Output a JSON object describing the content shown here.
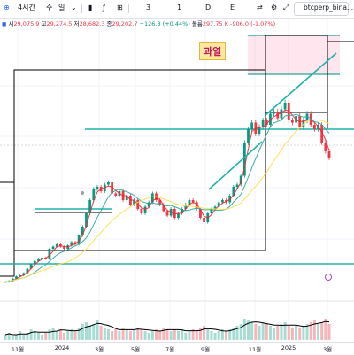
{
  "toolbar": {
    "items": [
      "4시간",
      "주",
      "일",
      "3",
      "1",
      "D",
      "E"
    ],
    "symbol": "btcperp_bina..."
  },
  "ohlc": {
    "open_label": "시",
    "open": "29,075.9",
    "high_label": "고",
    "high": "29,274.5",
    "low_label": "저",
    "low": "28,682.3",
    "close_label": "종",
    "close": "29,202.7",
    "change": "+126.8 (+0.44%)",
    "volume_label": "볼륨",
    "volume": "297.75 K",
    "vol_change": "-906.0 (-1.07%)"
  },
  "annotation": {
    "text": "과열"
  },
  "colors": {
    "up": "#089981",
    "down": "#f23645",
    "ma_fast": "#f5222d",
    "ma_mid": "#26a69a",
    "ma_slow": "#f9e04b",
    "trend": "#20b2aa",
    "box": "#000000",
    "zone": "#ff7bac"
  },
  "chart_data": {
    "type": "line",
    "x_ticks": [
      "11월",
      "2024",
      "3월",
      "5월",
      "7월",
      "9월",
      "11월",
      "2025",
      "3월"
    ],
    "series": [
      {
        "values": [
          27000,
          27500,
          28500,
          29500,
          30000,
          31000,
          33000,
          35000,
          36500,
          37500,
          38000,
          37500,
          42000,
          43000,
          44000,
          43000,
          42000,
          43500,
          45000,
          44000,
          48000,
          52000,
          58000,
          64000,
          69000,
          70000,
          68000,
          71000,
          72000,
          67000,
          66000,
          68000,
          64000,
          66000,
          62000,
          64000,
          60000,
          58000,
          61000,
          63000,
          67000,
          64000,
          62000,
          59000,
          57000,
          60000,
          56000,
          58000,
          60000,
          62000,
          64000,
          63000,
          60000,
          56000,
          54000,
          58000,
          60000,
          61000,
          63000,
          64000,
          63000,
          66000,
          70000,
          71000,
          75000,
          90000,
          96000,
          99000,
          94000,
          97000,
          100000,
          98000,
          103000,
          104000,
          101000,
          105000,
          108000,
          100000,
          99000,
          102000,
          97000,
          100000,
          103000,
          98000,
          96000,
          98000,
          90000,
          86000,
          83000
        ]
      }
    ],
    "volume": [
      3,
      4,
      2,
      3,
      5,
      3,
      4,
      6,
      5,
      4,
      3,
      4,
      6,
      7,
      5,
      6,
      4,
      5,
      6,
      5,
      7,
      9,
      10,
      8,
      9,
      11,
      8,
      7,
      6,
      5,
      6,
      5,
      7,
      6,
      5,
      6,
      7,
      6,
      5,
      4,
      5,
      6,
      5,
      7,
      6,
      5,
      6,
      5,
      6,
      4,
      5,
      6,
      5,
      7,
      8,
      6,
      5,
      4,
      5,
      6,
      5,
      6,
      7,
      8,
      9,
      12,
      11,
      10,
      9,
      8,
      10,
      9,
      8,
      7,
      8,
      9,
      10,
      8,
      7,
      8,
      7,
      8,
      9,
      10,
      11,
      9,
      10,
      12,
      9
    ],
    "ylim": [
      20000,
      140000
    ]
  }
}
